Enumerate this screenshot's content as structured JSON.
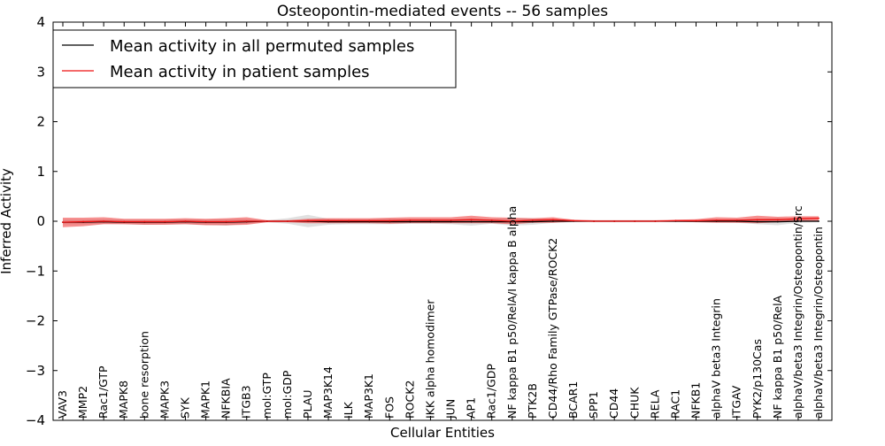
{
  "chart_data": {
    "type": "line",
    "title": "Osteopontin-mediated events -- 56 samples",
    "xlabel": "Cellular Entities",
    "ylabel": "Inferred Activity",
    "ylim": [
      -4,
      4
    ],
    "yticks": [
      -4,
      -3,
      -2,
      -1,
      0,
      1,
      2,
      3,
      4
    ],
    "ytick_labels": [
      "−4",
      "−3",
      "−2",
      "−1",
      "0",
      "1",
      "2",
      "3",
      "4"
    ],
    "grid": false,
    "legend_position": "top-left",
    "categories": [
      "VAV3",
      "MMP2",
      "Rac1/GTP",
      "MAPK8",
      "bone resorption",
      "MAPK3",
      "SYK",
      "MAPK1",
      "NFKBIA",
      "ITGB3",
      "mol:GTP",
      "mol:GDP",
      "PLAU",
      "MAP3K14",
      "ILK",
      "MAP3K1",
      "FOS",
      "ROCK2",
      "IKK alpha homodimer",
      "JUN",
      "AP1",
      "Rac1/GDP",
      "NF kappa B1 p50/RelA/I kappa B alpha",
      "PTK2B",
      "CD44/Rho Family GTPase/ROCK2",
      "BCAR1",
      "SPP1",
      "CD44",
      "CHUK",
      "RELA",
      "RAC1",
      "NFKB1",
      "alphaV beta3 Integrin",
      "ITGAV",
      "PYK2/p130Cas",
      "NF kappa B1 p50/RelA",
      "alphaV/beta3 Integrin/Osteopontin/Src",
      "alphaV/beta3 Integrin/Osteopontin"
    ],
    "series": [
      {
        "name": "Mean activity in all permuted samples",
        "color": "#000000",
        "band_color": "#bbbbbb",
        "values": [
          -0.02,
          -0.02,
          -0.01,
          -0.02,
          -0.02,
          -0.02,
          -0.01,
          -0.02,
          -0.02,
          -0.01,
          0.0,
          0.0,
          0.0,
          -0.01,
          -0.01,
          -0.01,
          -0.01,
          -0.01,
          -0.01,
          -0.01,
          -0.01,
          -0.01,
          -0.01,
          -0.01,
          0.0,
          0.0,
          0.0,
          0.0,
          0.0,
          0.0,
          0.0,
          0.0,
          0.0,
          0.0,
          -0.01,
          -0.01,
          0.0,
          0.0
        ],
        "band_lower": [
          -0.06,
          -0.06,
          -0.05,
          -0.06,
          -0.07,
          -0.06,
          -0.06,
          -0.07,
          -0.09,
          -0.05,
          -0.02,
          -0.05,
          -0.12,
          -0.07,
          -0.06,
          -0.06,
          -0.06,
          -0.05,
          -0.05,
          -0.06,
          -0.09,
          -0.05,
          -0.09,
          -0.07,
          -0.03,
          -0.02,
          -0.02,
          -0.02,
          -0.02,
          -0.02,
          -0.02,
          -0.02,
          -0.02,
          -0.03,
          -0.06,
          -0.08,
          -0.03,
          -0.02
        ],
        "band_upper": [
          0.03,
          0.03,
          0.04,
          0.03,
          0.03,
          0.03,
          0.04,
          0.03,
          0.04,
          0.04,
          0.02,
          0.06,
          0.13,
          0.05,
          0.04,
          0.04,
          0.05,
          0.04,
          0.04,
          0.04,
          0.06,
          0.04,
          0.06,
          0.06,
          0.03,
          0.02,
          0.02,
          0.02,
          0.02,
          0.02,
          0.02,
          0.02,
          0.02,
          0.03,
          0.05,
          0.06,
          0.03,
          0.02
        ]
      },
      {
        "name": "Mean activity in patient samples",
        "color": "#ee1111",
        "band_color": "#ee2222",
        "values": [
          -0.02,
          -0.01,
          0.0,
          -0.01,
          -0.01,
          -0.01,
          0.0,
          -0.01,
          -0.01,
          0.0,
          0.0,
          0.0,
          0.01,
          0.01,
          0.01,
          0.01,
          0.01,
          0.02,
          0.02,
          0.02,
          0.03,
          0.02,
          0.0,
          0.02,
          0.03,
          0.01,
          0.0,
          0.0,
          0.0,
          0.0,
          0.01,
          0.01,
          0.02,
          0.02,
          0.03,
          0.03,
          0.05,
          0.06
        ],
        "band_lower": [
          -0.12,
          -0.1,
          -0.06,
          -0.06,
          -0.07,
          -0.07,
          -0.06,
          -0.08,
          -0.08,
          -0.07,
          -0.02,
          -0.02,
          -0.04,
          -0.04,
          -0.04,
          -0.04,
          -0.05,
          -0.04,
          -0.04,
          -0.04,
          -0.04,
          -0.04,
          -0.06,
          -0.03,
          -0.03,
          -0.01,
          -0.01,
          -0.01,
          -0.01,
          -0.01,
          -0.01,
          -0.02,
          -0.03,
          -0.03,
          -0.04,
          -0.02,
          -0.01,
          0.0
        ],
        "band_upper": [
          0.07,
          0.07,
          0.08,
          0.05,
          0.05,
          0.05,
          0.06,
          0.05,
          0.06,
          0.08,
          0.02,
          0.02,
          0.05,
          0.06,
          0.06,
          0.06,
          0.07,
          0.08,
          0.08,
          0.08,
          0.11,
          0.08,
          0.07,
          0.06,
          0.08,
          0.03,
          0.02,
          0.02,
          0.02,
          0.02,
          0.03,
          0.04,
          0.08,
          0.07,
          0.11,
          0.09,
          0.1,
          0.1
        ]
      }
    ]
  }
}
